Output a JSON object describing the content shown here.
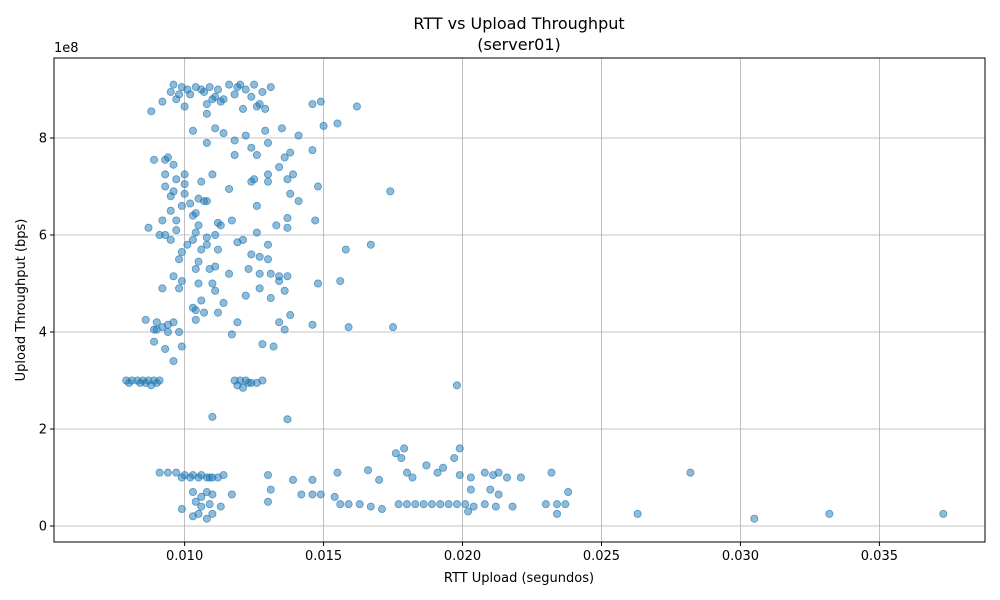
{
  "chart_data": {
    "type": "scatter",
    "title": "RTT vs Upload Throughput",
    "subtitle": "(server01)",
    "xlabel": "RTT Upload (segundos)",
    "ylabel": "Upload Throughput (bps)",
    "y_offset_label": "1e8",
    "xlim": [
      0.0053,
      0.0388
    ],
    "ylim": [
      -0.33,
      9.65
    ],
    "y_scale_multiplier": 100000000,
    "x_ticks": [
      0.01,
      0.015,
      0.02,
      0.025,
      0.03,
      0.035
    ],
    "x_tick_labels": [
      "0.010",
      "0.015",
      "0.020",
      "0.025",
      "0.030",
      "0.035"
    ],
    "y_ticks": [
      0,
      2,
      4,
      6,
      8
    ],
    "y_tick_labels": [
      "0",
      "2",
      "4",
      "6",
      "8"
    ],
    "grid": true,
    "color": "#1f77b4",
    "points": [
      [
        0.0096,
        9.1
      ],
      [
        0.0099,
        9.05
      ],
      [
        0.0101,
        9.0
      ],
      [
        0.0104,
        9.05
      ],
      [
        0.0106,
        9.0
      ],
      [
        0.0109,
        9.05
      ],
      [
        0.0112,
        9.0
      ],
      [
        0.0116,
        9.1
      ],
      [
        0.0119,
        9.05
      ],
      [
        0.0122,
        9.0
      ],
      [
        0.0125,
        9.1
      ],
      [
        0.0128,
        8.95
      ],
      [
        0.0131,
        9.05
      ],
      [
        0.0095,
        8.95
      ],
      [
        0.0098,
        8.9
      ],
      [
        0.0102,
        8.9
      ],
      [
        0.0107,
        8.95
      ],
      [
        0.0111,
        8.85
      ],
      [
        0.0114,
        8.8
      ],
      [
        0.0118,
        8.9
      ],
      [
        0.012,
        9.1
      ],
      [
        0.0124,
        8.85
      ],
      [
        0.0127,
        8.7
      ],
      [
        0.01,
        8.65
      ],
      [
        0.0108,
        8.7
      ],
      [
        0.0113,
        8.75
      ],
      [
        0.0121,
        8.6
      ],
      [
        0.0126,
        8.65
      ],
      [
        0.0088,
        8.55
      ],
      [
        0.0092,
        8.75
      ],
      [
        0.0097,
        8.8
      ],
      [
        0.011,
        8.8
      ],
      [
        0.0146,
        8.7
      ],
      [
        0.0149,
        8.75
      ],
      [
        0.0162,
        8.65
      ],
      [
        0.0108,
        8.5
      ],
      [
        0.0129,
        8.6
      ],
      [
        0.015,
        8.25
      ],
      [
        0.0155,
        8.3
      ],
      [
        0.0103,
        8.15
      ],
      [
        0.0111,
        8.2
      ],
      [
        0.0114,
        8.1
      ],
      [
        0.0122,
        8.05
      ],
      [
        0.0129,
        8.15
      ],
      [
        0.0135,
        8.2
      ],
      [
        0.0141,
        8.05
      ],
      [
        0.0108,
        7.9
      ],
      [
        0.0118,
        7.95
      ],
      [
        0.0124,
        7.8
      ],
      [
        0.013,
        7.9
      ],
      [
        0.0146,
        7.75
      ],
      [
        0.0094,
        7.6
      ],
      [
        0.0089,
        7.55
      ],
      [
        0.0093,
        7.55
      ],
      [
        0.0096,
        7.45
      ],
      [
        0.0118,
        7.65
      ],
      [
        0.0126,
        7.65
      ],
      [
        0.0136,
        7.6
      ],
      [
        0.0138,
        7.7
      ],
      [
        0.0134,
        7.4
      ],
      [
        0.0093,
        7.25
      ],
      [
        0.01,
        7.25
      ],
      [
        0.011,
        7.25
      ],
      [
        0.0125,
        7.15
      ],
      [
        0.013,
        7.25
      ],
      [
        0.0139,
        7.25
      ],
      [
        0.0097,
        7.15
      ],
      [
        0.0106,
        7.1
      ],
      [
        0.0124,
        7.1
      ],
      [
        0.013,
        7.1
      ],
      [
        0.0137,
        7.15
      ],
      [
        0.0148,
        7.0
      ],
      [
        0.01,
        7.05
      ],
      [
        0.0093,
        7.0
      ],
      [
        0.0116,
        6.95
      ],
      [
        0.0096,
        6.9
      ],
      [
        0.01,
        6.85
      ],
      [
        0.0138,
        6.85
      ],
      [
        0.0174,
        6.9
      ],
      [
        0.0095,
        6.8
      ],
      [
        0.0105,
        6.75
      ],
      [
        0.0108,
        6.7
      ],
      [
        0.0102,
        6.65
      ],
      [
        0.0099,
        6.6
      ],
      [
        0.0107,
        6.7
      ],
      [
        0.0126,
        6.6
      ],
      [
        0.0141,
        6.7
      ],
      [
        0.0104,
        6.45
      ],
      [
        0.0095,
        6.5
      ],
      [
        0.0103,
        6.4
      ],
      [
        0.0112,
        6.25
      ],
      [
        0.0117,
        6.3
      ],
      [
        0.0133,
        6.2
      ],
      [
        0.0137,
        6.35
      ],
      [
        0.0147,
        6.3
      ],
      [
        0.0092,
        6.3
      ],
      [
        0.0097,
        6.3
      ],
      [
        0.0087,
        6.15
      ],
      [
        0.0105,
        6.2
      ],
      [
        0.0113,
        6.2
      ],
      [
        0.0137,
        6.15
      ],
      [
        0.0093,
        6.0
      ],
      [
        0.0104,
        6.05
      ],
      [
        0.0108,
        5.95
      ],
      [
        0.0111,
        6.0
      ],
      [
        0.0121,
        5.9
      ],
      [
        0.0126,
        6.05
      ],
      [
        0.0091,
        6.0
      ],
      [
        0.0097,
        6.1
      ],
      [
        0.0095,
        5.9
      ],
      [
        0.0103,
        5.9
      ],
      [
        0.0108,
        5.8
      ],
      [
        0.0101,
        5.8
      ],
      [
        0.0119,
        5.85
      ],
      [
        0.013,
        5.8
      ],
      [
        0.0158,
        5.7
      ],
      [
        0.0167,
        5.8
      ],
      [
        0.0099,
        5.65
      ],
      [
        0.0106,
        5.7
      ],
      [
        0.0112,
        5.7
      ],
      [
        0.0124,
        5.6
      ],
      [
        0.0127,
        5.55
      ],
      [
        0.013,
        5.5
      ],
      [
        0.0098,
        5.5
      ],
      [
        0.0105,
        5.45
      ],
      [
        0.0111,
        5.35
      ],
      [
        0.0104,
        5.3
      ],
      [
        0.0109,
        5.3
      ],
      [
        0.0096,
        5.15
      ],
      [
        0.0099,
        5.05
      ],
      [
        0.0105,
        5.0
      ],
      [
        0.011,
        5.0
      ],
      [
        0.0116,
        5.2
      ],
      [
        0.0123,
        5.3
      ],
      [
        0.0127,
        5.2
      ],
      [
        0.0131,
        5.2
      ],
      [
        0.0134,
        5.15
      ],
      [
        0.0137,
        5.15
      ],
      [
        0.0148,
        5.0
      ],
      [
        0.0156,
        5.05
      ],
      [
        0.0092,
        4.9
      ],
      [
        0.0098,
        4.9
      ],
      [
        0.0106,
        4.65
      ],
      [
        0.0111,
        4.85
      ],
      [
        0.0114,
        4.6
      ],
      [
        0.0122,
        4.75
      ],
      [
        0.0127,
        4.9
      ],
      [
        0.0131,
        4.7
      ],
      [
        0.0134,
        5.05
      ],
      [
        0.0136,
        4.85
      ],
      [
        0.0103,
        4.5
      ],
      [
        0.0104,
        4.45
      ],
      [
        0.0107,
        4.4
      ],
      [
        0.0112,
        4.4
      ],
      [
        0.0104,
        4.25
      ],
      [
        0.0119,
        4.2
      ],
      [
        0.0134,
        4.2
      ],
      [
        0.0138,
        4.35
      ],
      [
        0.0146,
        4.15
      ],
      [
        0.0159,
        4.1
      ],
      [
        0.0175,
        4.1
      ],
      [
        0.0086,
        4.25
      ],
      [
        0.009,
        4.2
      ],
      [
        0.0094,
        4.15
      ],
      [
        0.0096,
        4.2
      ],
      [
        0.0092,
        4.1
      ],
      [
        0.009,
        4.05
      ],
      [
        0.0098,
        4.0
      ],
      [
        0.0094,
        4.0
      ],
      [
        0.0089,
        4.05
      ],
      [
        0.0136,
        4.05
      ],
      [
        0.0117,
        3.95
      ],
      [
        0.0089,
        3.8
      ],
      [
        0.0093,
        3.65
      ],
      [
        0.0099,
        3.7
      ],
      [
        0.0128,
        3.75
      ],
      [
        0.0132,
        3.7
      ],
      [
        0.0096,
        3.4
      ],
      [
        0.0079,
        3.0
      ],
      [
        0.0081,
        3.0
      ],
      [
        0.0083,
        3.0
      ],
      [
        0.0085,
        3.0
      ],
      [
        0.0087,
        3.0
      ],
      [
        0.0089,
        3.0
      ],
      [
        0.0091,
        3.0
      ],
      [
        0.008,
        2.95
      ],
      [
        0.0084,
        2.95
      ],
      [
        0.0086,
        2.95
      ],
      [
        0.0088,
        2.9
      ],
      [
        0.009,
        2.95
      ],
      [
        0.0118,
        3.0
      ],
      [
        0.012,
        3.0
      ],
      [
        0.0122,
        3.0
      ],
      [
        0.0124,
        2.95
      ],
      [
        0.0126,
        2.95
      ],
      [
        0.0128,
        3.0
      ],
      [
        0.0119,
        2.9
      ],
      [
        0.0121,
        2.85
      ],
      [
        0.0123,
        2.95
      ],
      [
        0.0198,
        2.9
      ],
      [
        0.011,
        2.25
      ],
      [
        0.0137,
        2.2
      ],
      [
        0.0091,
        1.1
      ],
      [
        0.0094,
        1.1
      ],
      [
        0.0097,
        1.1
      ],
      [
        0.01,
        1.05
      ],
      [
        0.0103,
        1.05
      ],
      [
        0.0106,
        1.05
      ],
      [
        0.0109,
        1.0
      ],
      [
        0.0112,
        1.0
      ],
      [
        0.0114,
        1.05
      ],
      [
        0.0099,
        1.0
      ],
      [
        0.0102,
        1.0
      ],
      [
        0.0105,
        1.0
      ],
      [
        0.0108,
        1.0
      ],
      [
        0.011,
        1.0
      ],
      [
        0.013,
        1.05
      ],
      [
        0.0139,
        0.95
      ],
      [
        0.0146,
        0.95
      ],
      [
        0.0155,
        1.1
      ],
      [
        0.0166,
        1.15
      ],
      [
        0.017,
        0.95
      ],
      [
        0.0176,
        1.5
      ],
      [
        0.0178,
        1.4
      ],
      [
        0.0179,
        1.6
      ],
      [
        0.018,
        1.1
      ],
      [
        0.0182,
        1.0
      ],
      [
        0.0187,
        1.25
      ],
      [
        0.0191,
        1.1
      ],
      [
        0.0193,
        1.2
      ],
      [
        0.0197,
        1.4
      ],
      [
        0.0199,
        1.6
      ],
      [
        0.0199,
        1.05
      ],
      [
        0.0203,
        1.0
      ],
      [
        0.0208,
        1.1
      ],
      [
        0.0211,
        1.05
      ],
      [
        0.0213,
        1.1
      ],
      [
        0.0216,
        1.0
      ],
      [
        0.0221,
        1.0
      ],
      [
        0.0232,
        1.1
      ],
      [
        0.0282,
        1.1
      ],
      [
        0.0103,
        0.7
      ],
      [
        0.0106,
        0.6
      ],
      [
        0.0108,
        0.7
      ],
      [
        0.011,
        0.65
      ],
      [
        0.0117,
        0.65
      ],
      [
        0.0131,
        0.75
      ],
      [
        0.0142,
        0.65
      ],
      [
        0.0146,
        0.65
      ],
      [
        0.0149,
        0.65
      ],
      [
        0.0154,
        0.6
      ],
      [
        0.0104,
        0.5
      ],
      [
        0.0106,
        0.4
      ],
      [
        0.0109,
        0.45
      ],
      [
        0.0113,
        0.4
      ],
      [
        0.013,
        0.5
      ],
      [
        0.0156,
        0.45
      ],
      [
        0.0159,
        0.45
      ],
      [
        0.0163,
        0.45
      ],
      [
        0.0167,
        0.4
      ],
      [
        0.0171,
        0.35
      ],
      [
        0.0177,
        0.45
      ],
      [
        0.018,
        0.45
      ],
      [
        0.0183,
        0.45
      ],
      [
        0.0186,
        0.45
      ],
      [
        0.0189,
        0.45
      ],
      [
        0.0192,
        0.45
      ],
      [
        0.0195,
        0.45
      ],
      [
        0.0198,
        0.45
      ],
      [
        0.0201,
        0.45
      ],
      [
        0.0204,
        0.4
      ],
      [
        0.0208,
        0.45
      ],
      [
        0.0212,
        0.4
      ],
      [
        0.0218,
        0.4
      ],
      [
        0.023,
        0.45
      ],
      [
        0.0234,
        0.45
      ],
      [
        0.0237,
        0.45
      ],
      [
        0.0203,
        0.75
      ],
      [
        0.021,
        0.75
      ],
      [
        0.0213,
        0.65
      ],
      [
        0.0238,
        0.7
      ],
      [
        0.0099,
        0.35
      ],
      [
        0.0103,
        0.2
      ],
      [
        0.0105,
        0.25
      ],
      [
        0.0108,
        0.15
      ],
      [
        0.011,
        0.25
      ],
      [
        0.0202,
        0.3
      ],
      [
        0.0234,
        0.25
      ],
      [
        0.0263,
        0.25
      ],
      [
        0.0305,
        0.15
      ],
      [
        0.0332,
        0.25
      ],
      [
        0.0373,
        0.25
      ]
    ]
  }
}
